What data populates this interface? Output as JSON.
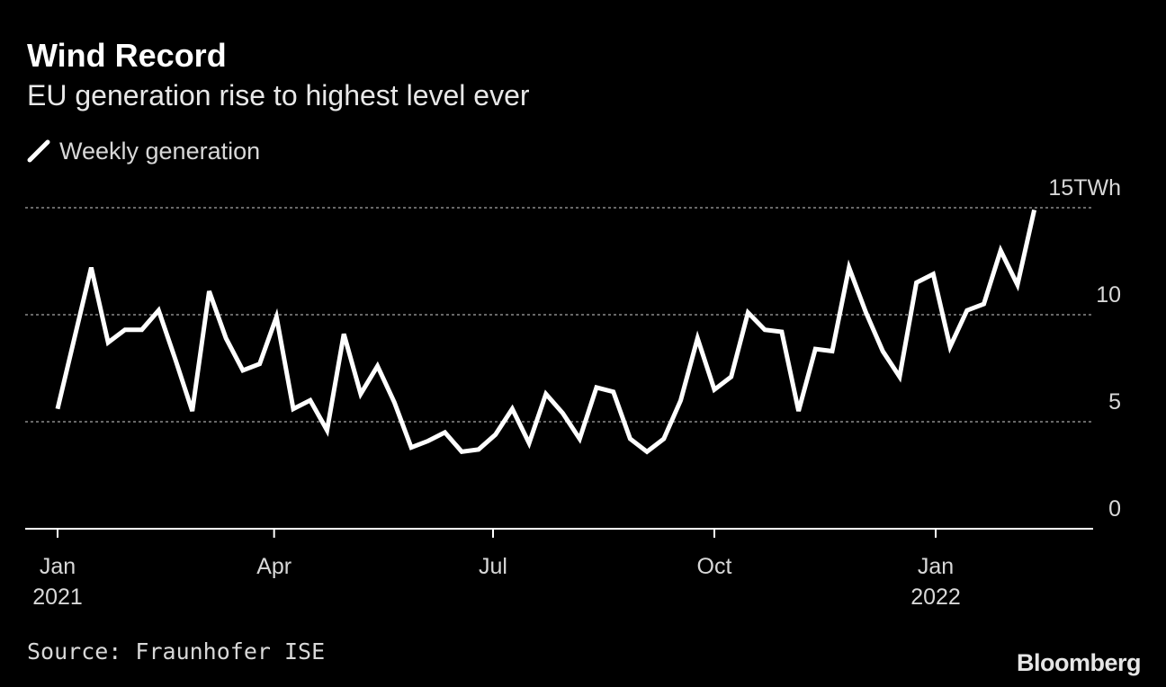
{
  "header": {
    "title": "Wind Record",
    "subtitle": "EU generation rise to highest level ever"
  },
  "footer": {
    "source": "Source: Fraunhofer ISE",
    "logo": "Bloomberg"
  },
  "colors": {
    "background": "#000000",
    "line": "#ffffff",
    "grid": "#8a8a8a",
    "text": "#d8d8d8"
  },
  "chart_data": {
    "type": "line",
    "title": "Wind Record",
    "subtitle": "EU generation rise to highest level ever",
    "xlabel": "",
    "ylabel": "",
    "ylim": [
      0,
      15
    ],
    "grid": true,
    "legend": "top-left",
    "y_ticks": [
      {
        "value": 15,
        "label": "15TWh"
      },
      {
        "value": 10,
        "label": "10"
      },
      {
        "value": 5,
        "label": "5"
      },
      {
        "value": 0,
        "label": "0"
      }
    ],
    "x_ticks": [
      {
        "date": "2021-01-01",
        "label": "Jan",
        "sublabel": "2021"
      },
      {
        "date": "2021-04-01",
        "label": "Apr",
        "sublabel": ""
      },
      {
        "date": "2021-07-01",
        "label": "Jul",
        "sublabel": ""
      },
      {
        "date": "2021-10-01",
        "label": "Oct",
        "sublabel": ""
      },
      {
        "date": "2022-01-01",
        "label": "Jan",
        "sublabel": "2022"
      }
    ],
    "series": [
      {
        "name": "Weekly generation",
        "x": [
          "2021-01-01",
          "2021-01-08",
          "2021-01-15",
          "2021-01-22",
          "2021-01-29",
          "2021-02-05",
          "2021-02-12",
          "2021-02-19",
          "2021-02-26",
          "2021-03-05",
          "2021-03-12",
          "2021-03-19",
          "2021-03-26",
          "2021-04-02",
          "2021-04-09",
          "2021-04-16",
          "2021-04-23",
          "2021-04-30",
          "2021-05-07",
          "2021-05-14",
          "2021-05-21",
          "2021-05-28",
          "2021-06-04",
          "2021-06-11",
          "2021-06-18",
          "2021-06-25",
          "2021-07-02",
          "2021-07-09",
          "2021-07-16",
          "2021-07-23",
          "2021-07-30",
          "2021-08-06",
          "2021-08-13",
          "2021-08-20",
          "2021-08-27",
          "2021-09-03",
          "2021-09-10",
          "2021-09-17",
          "2021-09-24",
          "2021-10-01",
          "2021-10-08",
          "2021-10-15",
          "2021-10-22",
          "2021-10-29",
          "2021-11-05",
          "2021-11-12",
          "2021-11-19",
          "2021-11-26",
          "2021-12-03",
          "2021-12-10",
          "2021-12-17",
          "2021-12-24",
          "2021-12-31",
          "2022-01-07",
          "2022-01-14",
          "2022-01-21",
          "2022-01-28",
          "2022-02-04",
          "2022-02-11"
        ],
        "values": [
          5.6,
          8.9,
          12.2,
          8.7,
          9.3,
          9.3,
          10.2,
          7.9,
          5.5,
          11.1,
          8.9,
          7.4,
          7.7,
          9.9,
          5.6,
          6.0,
          4.6,
          9.1,
          6.3,
          7.6,
          5.9,
          3.8,
          4.1,
          4.5,
          3.6,
          3.7,
          4.4,
          5.6,
          4.0,
          6.3,
          5.4,
          4.2,
          6.6,
          6.4,
          4.2,
          3.6,
          4.2,
          6.0,
          8.9,
          6.5,
          7.1,
          10.1,
          9.3,
          9.2,
          5.5,
          8.4,
          8.3,
          12.2,
          10.1,
          8.3,
          7.1,
          11.5,
          11.9,
          8.5,
          10.2,
          10.5,
          13.0,
          11.4,
          14.9
        ]
      }
    ]
  }
}
